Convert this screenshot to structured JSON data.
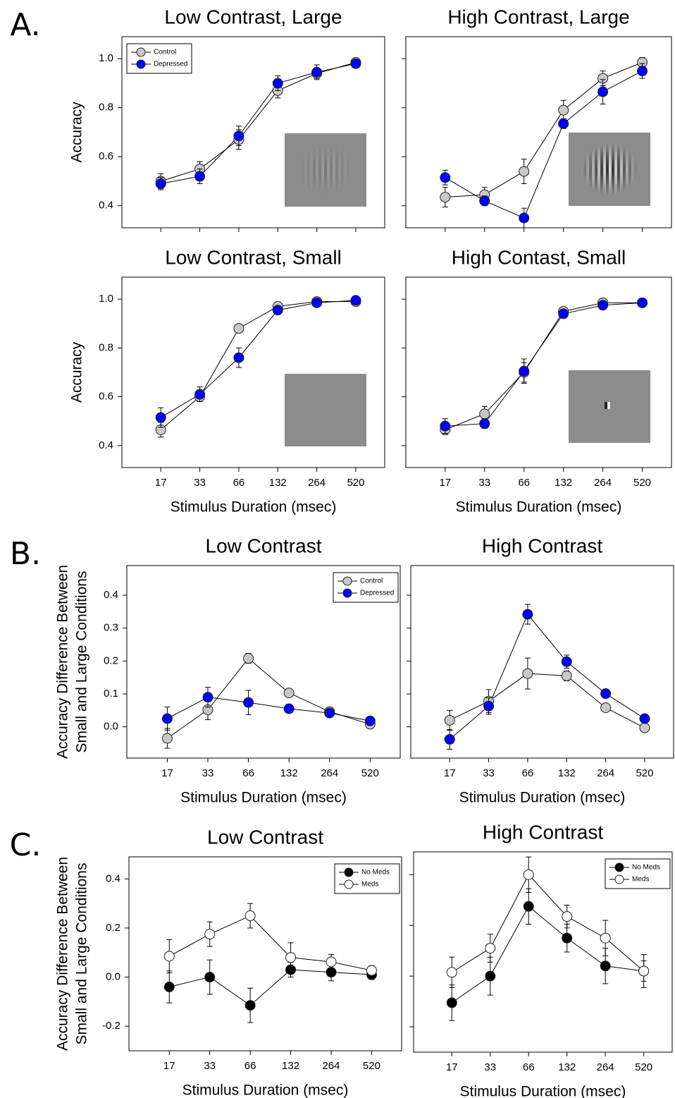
{
  "chart_data": [
    {
      "type": "line",
      "panel_label": "A.",
      "title": "Low Contrast, Large",
      "ylabel": "Accuracy",
      "categories": [
        null,
        null,
        null,
        null,
        null,
        null
      ],
      "series": [
        {
          "name": "Control",
          "color": "#c8c8c8",
          "values": [
            0.5,
            0.55,
            0.67,
            0.87,
            0.94,
            0.985
          ],
          "errors": [
            0.03,
            0.03,
            0.04,
            0.03,
            0.02,
            0.01
          ]
        },
        {
          "name": "Depressed",
          "color": "#0000ff",
          "values": [
            0.49,
            0.52,
            0.685,
            0.9,
            0.945,
            0.98
          ],
          "errors": [
            0.025,
            0.03,
            0.04,
            0.03,
            0.03,
            0.01
          ]
        }
      ],
      "ylim": [
        0.31,
        1.09
      ],
      "yticks": [
        0.4,
        0.6,
        0.8,
        {
          "value": 1,
          "label": "1.0"
        }
      ],
      "legend": "upper left"
    },
    {
      "type": "line",
      "title": "High Contrast, Large",
      "categories": [
        null,
        null,
        null,
        null,
        null,
        null
      ],
      "series": [
        {
          "name": "Control",
          "color": "#c8c8c8",
          "values": [
            0.435,
            0.445,
            0.54,
            0.79,
            0.92,
            0.985
          ],
          "errors": [
            0.04,
            0.03,
            0.05,
            0.04,
            0.03,
            0.02
          ]
        },
        {
          "name": "Depressed",
          "color": "#0000ff",
          "values": [
            0.515,
            0.42,
            0.35,
            0.735,
            0.865,
            0.95
          ],
          "errors": [
            0.03,
            0.02,
            0.04,
            0.02,
            0.05,
            0.03
          ]
        }
      ],
      "ylim": [
        0.31,
        1.09
      ],
      "yticks": [
        0.4,
        0.6,
        0.8,
        1
      ],
      "ytick_labels": false
    },
    {
      "type": "line",
      "title": "Low Contrast, Small",
      "ylabel": "Accuracy",
      "xlabel": "Stimulus Duration (msec)",
      "categories": [
        "17",
        "33",
        "66",
        "132",
        "264",
        "520"
      ],
      "series": [
        {
          "name": "Control",
          "color": "#c8c8c8",
          "values": [
            0.465,
            0.6,
            0.88,
            0.97,
            0.99,
            0.99
          ],
          "errors": [
            0.03,
            0.02,
            0.01,
            0.01,
            0.01,
            0.01
          ]
        },
        {
          "name": "Depressed",
          "color": "#0000ff",
          "values": [
            0.515,
            0.61,
            0.76,
            0.955,
            0.985,
            0.995
          ],
          "errors": [
            0.04,
            0.03,
            0.04,
            0.01,
            0.01,
            0.01
          ]
        }
      ],
      "ylim": [
        0.31,
        1.09
      ],
      "yticks": [
        0.4,
        0.6,
        0.8,
        {
          "value": 1,
          "label": "1.0"
        }
      ]
    },
    {
      "type": "line",
      "title": "High Contast, Small",
      "xlabel": "Stimulus Duration (msec)",
      "categories": [
        "17",
        "33",
        "66",
        "132",
        "264",
        "520"
      ],
      "series": [
        {
          "name": "Control",
          "color": "#c8c8c8",
          "values": [
            0.465,
            0.53,
            0.7,
            0.95,
            0.985,
            0.985
          ],
          "errors": [
            0.02,
            0.03,
            0.04,
            0.01,
            0.01,
            0.01
          ]
        },
        {
          "name": "Depressed",
          "color": "#0000ff",
          "values": [
            0.48,
            0.49,
            0.705,
            0.94,
            0.975,
            0.985
          ],
          "errors": [
            0.03,
            0.02,
            0.05,
            0.01,
            0.01,
            0.01
          ]
        }
      ],
      "ylim": [
        0.31,
        1.09
      ],
      "yticks": [
        0.4,
        0.6,
        0.8,
        1
      ],
      "ytick_labels": false
    },
    {
      "type": "line",
      "panel_label": "B.",
      "title": "Low Contrast",
      "ylabel": [
        "Accuracy Difference Between",
        "Small and Large Conditions"
      ],
      "xlabel": "Stimulus Duration (msec)",
      "categories": [
        "17",
        "33",
        "66",
        "132",
        "264",
        "520"
      ],
      "series": [
        {
          "name": "Control",
          "color": "#c8c8c8",
          "values": [
            -0.035,
            0.052,
            0.208,
            0.103,
            0.046,
            0.008
          ],
          "errors": [
            0.03,
            0.03,
            0.015,
            0.01,
            0.01,
            0.01
          ]
        },
        {
          "name": "Depressed",
          "color": "#0000ff",
          "values": [
            0.025,
            0.09,
            0.074,
            0.055,
            0.042,
            0.018
          ],
          "errors": [
            0.035,
            0.03,
            0.037,
            0.01,
            0.01,
            0.01
          ]
        }
      ],
      "ylim": [
        -0.095,
        0.49
      ],
      "yticks": [
        {
          "value": 0,
          "label": "0.0"
        },
        0.1,
        0.2,
        0.3,
        0.4
      ],
      "legend": "upper right"
    },
    {
      "type": "line",
      "title": "High Contrast",
      "xlabel": "Stimulus Duration (msec)",
      "categories": [
        "17",
        "33",
        "66",
        "132",
        "264",
        "520"
      ],
      "series": [
        {
          "name": "Control",
          "color": "#c8c8c8",
          "values": [
            0.02,
            0.078,
            0.162,
            0.155,
            0.058,
            -0.003
          ],
          "errors": [
            0.03,
            0.035,
            0.047,
            0.015,
            0.01,
            0.01
          ]
        },
        {
          "name": "Depressed",
          "color": "#0000ff",
          "values": [
            -0.038,
            0.063,
            0.342,
            0.198,
            0.101,
            0.025
          ],
          "errors": [
            0.03,
            0.025,
            0.03,
            0.02,
            0.01,
            0.01
          ]
        }
      ],
      "ylim": [
        -0.095,
        0.49
      ],
      "yticks": [
        0,
        0.1,
        0.2,
        0.3,
        0.4
      ],
      "ytick_labels": false
    },
    {
      "type": "line",
      "panel_label": "C.",
      "title": "Low Contrast",
      "ylabel": [
        "Accuracy Difference Between",
        "Small and Large Conditions"
      ],
      "xlabel": "Stimulus Duration (msec)",
      "categories": [
        "17",
        "33",
        "66",
        "132",
        "264",
        "520"
      ],
      "series": [
        {
          "name": "No Meds",
          "color": "#000000",
          "values": [
            -0.04,
            0.0,
            -0.115,
            0.03,
            0.02,
            0.01
          ],
          "errors": [
            0.065,
            0.07,
            0.07,
            0.03,
            0.035,
            0.02
          ]
        },
        {
          "name": "Meds",
          "color": "#ffffff",
          "values": [
            0.085,
            0.175,
            0.25,
            0.08,
            0.062,
            0.027
          ],
          "errors": [
            0.068,
            0.05,
            0.05,
            0.06,
            0.03,
            0.02
          ]
        }
      ],
      "ylim": [
        -0.3,
        0.49
      ],
      "yticks": [
        -0.2,
        {
          "value": 0,
          "label": "0.0"
        },
        0.2,
        0.4
      ],
      "legend": "upper right"
    },
    {
      "type": "line",
      "title": "High Contrast",
      "xlabel": "Stimulus Duration (msec)",
      "categories": [
        "17",
        "33",
        "66",
        "132",
        "264",
        "520"
      ],
      "series": [
        {
          "name": "No Meds",
          "color": "#000000",
          "values": [
            -0.105,
            0.0,
            0.275,
            0.15,
            0.04,
            0.02
          ],
          "errors": [
            0.07,
            0.075,
            0.07,
            0.055,
            0.07,
            0.065
          ]
        },
        {
          "name": "Meds",
          "color": "#ffffff",
          "values": [
            0.015,
            0.11,
            0.4,
            0.235,
            0.15,
            0.02
          ],
          "errors": [
            0.06,
            0.055,
            0.07,
            0.045,
            0.07,
            0.04
          ]
        }
      ],
      "ylim": [
        -0.3,
        0.49
      ],
      "yticks": [
        -0.2,
        0,
        0.2,
        0.4
      ],
      "ytick_labels": false,
      "legend": "upper right"
    }
  ]
}
